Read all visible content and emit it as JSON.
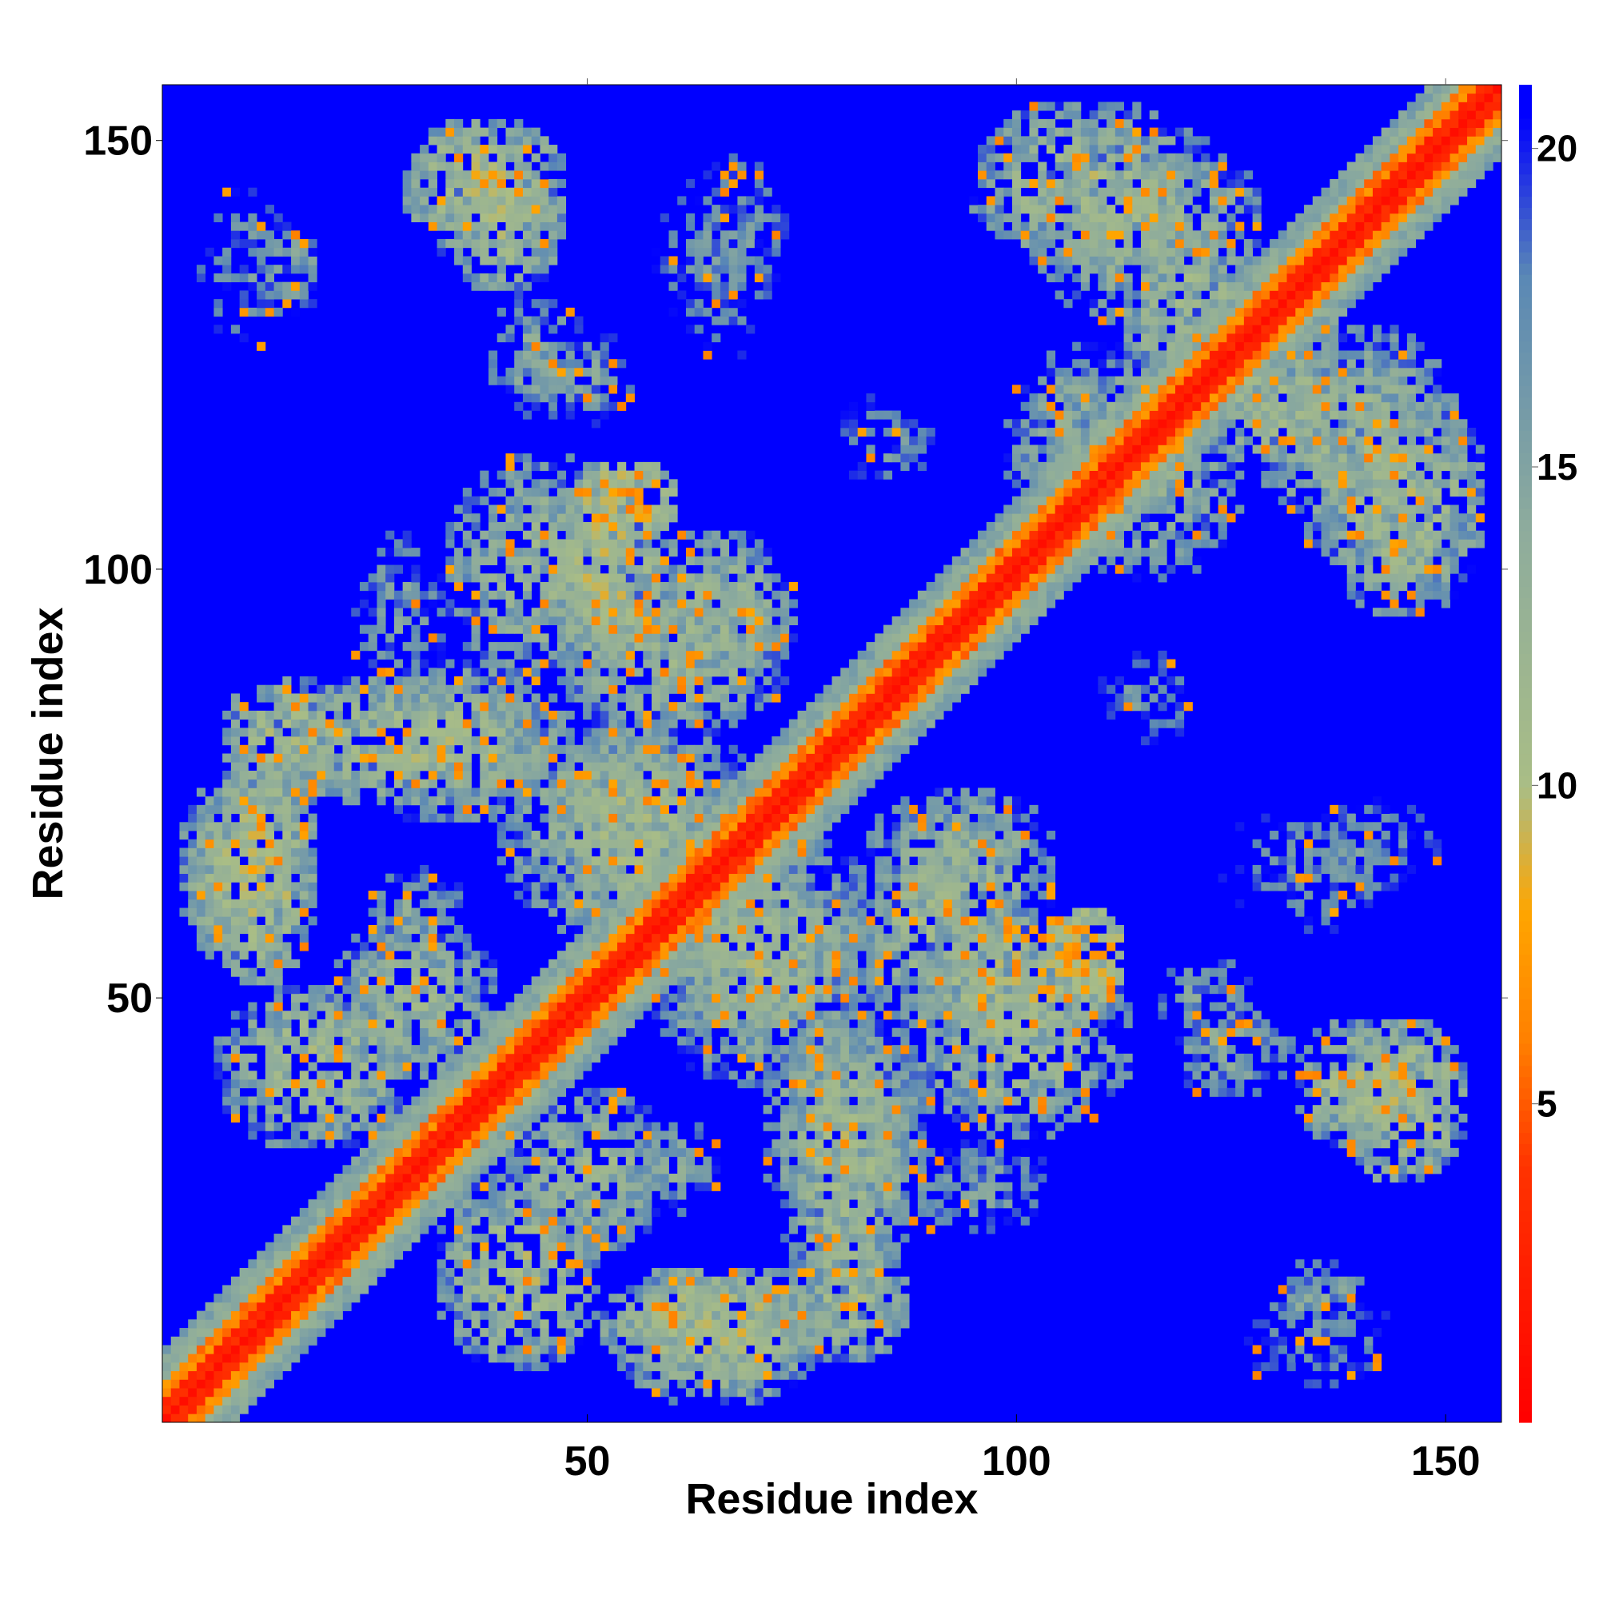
{
  "chart_data": {
    "type": "heatmap",
    "title": "",
    "xlabel": "Residue index",
    "ylabel": "Residue index",
    "x_range": [
      1,
      156
    ],
    "y_range": [
      1,
      156
    ],
    "x_ticks": [
      50,
      100,
      150
    ],
    "y_ticks": [
      50,
      100,
      150
    ],
    "colorbar": {
      "range": [
        0,
        21
      ],
      "ticks": [
        5,
        10,
        15,
        20
      ],
      "stops": [
        {
          "value": 0,
          "color": "#ff0000"
        },
        {
          "value": 4,
          "color": "#ff3300"
        },
        {
          "value": 6,
          "color": "#ff8000"
        },
        {
          "value": 8,
          "color": "#ffa500"
        },
        {
          "value": 10,
          "color": "#a9bd86"
        },
        {
          "value": 14,
          "color": "#8eac9c"
        },
        {
          "value": 18,
          "color": "#5a88b5"
        },
        {
          "value": 20.5,
          "color": "#0000ff"
        }
      ],
      "cap_value": 21,
      "cap_color": "#0000ff"
    },
    "description_values": {
      "diagonal_distance": 1,
      "near_diagonal_distance": 6,
      "background_distance": 21
    },
    "contact_regions": [
      {
        "cx": 10,
        "cy": 65,
        "rx": 8,
        "ry": 12,
        "d": 12
      },
      {
        "cx": 18,
        "cy": 42,
        "rx": 12,
        "ry": 10,
        "d": 12
      },
      {
        "cx": 30,
        "cy": 80,
        "rx": 18,
        "ry": 8,
        "d": 12
      },
      {
        "cx": 38,
        "cy": 145,
        "rx": 10,
        "ry": 8,
        "d": 11
      },
      {
        "cx": 44,
        "cy": 125,
        "rx": 6,
        "ry": 8,
        "d": 15
      },
      {
        "cx": 45,
        "cy": 100,
        "rx": 12,
        "ry": 14,
        "d": 13
      },
      {
        "cx": 50,
        "cy": 30,
        "rx": 10,
        "ry": 10,
        "d": 13
      },
      {
        "cx": 55,
        "cy": 108,
        "rx": 6,
        "ry": 5,
        "d": 8
      },
      {
        "cx": 60,
        "cy": 90,
        "rx": 14,
        "ry": 10,
        "d": 13
      },
      {
        "cx": 65,
        "cy": 12,
        "rx": 14,
        "ry": 7,
        "d": 11
      },
      {
        "cx": 70,
        "cy": 55,
        "rx": 14,
        "ry": 16,
        "d": 13
      },
      {
        "cx": 80,
        "cy": 35,
        "rx": 10,
        "ry": 14,
        "d": 13
      },
      {
        "cx": 80,
        "cy": 15,
        "rx": 8,
        "ry": 8,
        "d": 12
      },
      {
        "cx": 100,
        "cy": 52,
        "rx": 12,
        "ry": 8,
        "d": 11
      },
      {
        "cx": 95,
        "cy": 65,
        "rx": 10,
        "ry": 10,
        "d": 13
      },
      {
        "cx": 108,
        "cy": 145,
        "rx": 14,
        "ry": 10,
        "d": 12
      },
      {
        "cx": 120,
        "cy": 130,
        "rx": 8,
        "ry": 10,
        "d": 12
      },
      {
        "cx": 140,
        "cy": 115,
        "rx": 12,
        "ry": 14,
        "d": 13
      },
      {
        "cx": 140,
        "cy": 40,
        "rx": 8,
        "ry": 8,
        "d": 12
      },
      {
        "cx": 135,
        "cy": 15,
        "rx": 6,
        "ry": 5,
        "d": 15
      },
      {
        "cx": 122,
        "cy": 50,
        "rx": 6,
        "ry": 6,
        "d": 16
      },
      {
        "cx": 140,
        "cy": 68,
        "rx": 10,
        "ry": 6,
        "d": 17
      },
      {
        "cx": 115,
        "cy": 110,
        "rx": 12,
        "ry": 12,
        "d": 14
      },
      {
        "cx": 55,
        "cy": 70,
        "rx": 10,
        "ry": 12,
        "d": 12
      },
      {
        "cx": 30,
        "cy": 60,
        "rx": 6,
        "ry": 6,
        "d": 15
      },
      {
        "cx": 28,
        "cy": 95,
        "rx": 6,
        "ry": 10,
        "d": 16
      },
      {
        "cx": 65,
        "cy": 135,
        "rx": 8,
        "ry": 12,
        "d": 17
      },
      {
        "cx": 85,
        "cy": 115,
        "rx": 6,
        "ry": 6,
        "d": 17
      },
      {
        "cx": 10,
        "cy": 135,
        "rx": 6,
        "ry": 10,
        "d": 17
      }
    ]
  }
}
